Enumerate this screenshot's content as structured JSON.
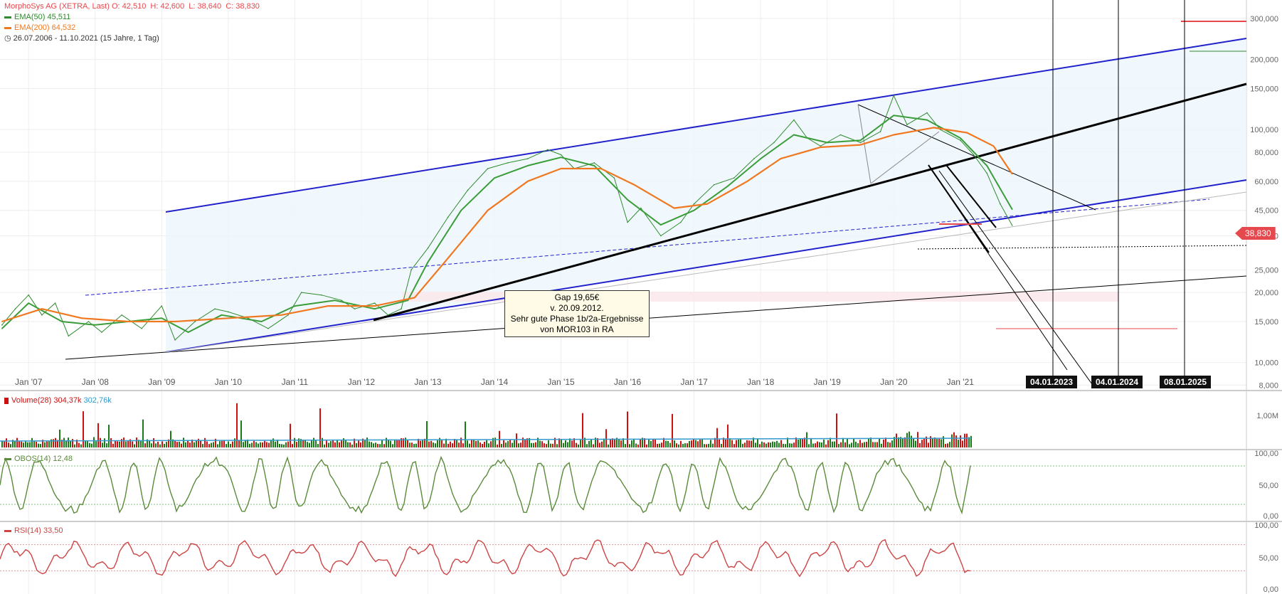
{
  "header": {
    "title": "MorphoSys AG (XETRA, Last)",
    "ohlc": "O: 42,510  H: 42,600  L: 38,640  C: 38,830",
    "ema50_label": "EMA(50)",
    "ema50_value": "45,511",
    "ema200_label": "EMA(200)",
    "ema200_value": "64,532",
    "range": "26.07.2006 - 11.10.2021",
    "range_note": "(15 Jahre, 1 Tag)"
  },
  "colors": {
    "price": "#2e8b2e",
    "ema50": "#3a9d3a",
    "ema200": "#f07820",
    "channel": "#2222cc",
    "volume_up": "#1a7a1a",
    "volume_down": "#cc1111",
    "volume_avg": "#3399cc",
    "obos": "#5a8a3a",
    "rsi": "#cc4444",
    "price_tag": "#e5484d"
  },
  "price_tag": "38,830",
  "annotation": {
    "line1": "Gap 19,65€",
    "line2": "v. 20.09.2012.",
    "line3": "Sehr gute Phase 1b/2a-Ergebnisse",
    "line4": "von MOR103 in RA"
  },
  "date_markers": [
    "04.01.2023",
    "04.01.2024",
    "08.01.2025"
  ],
  "volume_panel": {
    "label": "Volume(28)",
    "value1": "304,37k",
    "value2": "302,76k",
    "tick": "1,00M"
  },
  "obos_panel": {
    "label": "OBOS(14)",
    "value": "12,48",
    "ticks": [
      "100,00",
      "50,00",
      "0,00"
    ]
  },
  "rsi_panel": {
    "label": "RSI(14)",
    "value": "33,50",
    "ticks": [
      "100,00",
      "50,00",
      "0,00"
    ]
  },
  "chart_data": {
    "type": "line",
    "title": "MorphoSys AG (XETRA, Last)",
    "scale": "log",
    "x_ticks": [
      "Jan '07",
      "Jan '08",
      "Jan '09",
      "Jan '10",
      "Jan '11",
      "Jan '12",
      "Jan '13",
      "Jan '14",
      "Jan '15",
      "Jan '16",
      "Jan '17",
      "Jan '18",
      "Jan '19",
      "Jan '20",
      "Jan '21"
    ],
    "y_ticks": [
      "300,000",
      "200,000",
      "150,000",
      "100,000",
      "80,000",
      "60,000",
      "45,000",
      "35,000",
      "25,000",
      "20,000",
      "15,000",
      "10,000",
      "8,000"
    ],
    "y_tick_values": [
      300,
      200,
      150,
      100,
      80,
      60,
      45,
      35,
      25,
      20,
      15,
      10,
      8
    ],
    "ylim": [
      7.8,
      360
    ],
    "x_range": [
      2006.57,
      2025.3
    ],
    "series": [
      {
        "name": "MorphoSys AG",
        "points": [
          [
            2006.6,
            14.5
          ],
          [
            2006.8,
            17.0
          ],
          [
            2007.0,
            19.5
          ],
          [
            2007.2,
            16.0
          ],
          [
            2007.4,
            18.0
          ],
          [
            2007.6,
            13.0
          ],
          [
            2007.9,
            15.0
          ],
          [
            2008.1,
            13.5
          ],
          [
            2008.4,
            16.0
          ],
          [
            2008.7,
            14.0
          ],
          [
            2009.0,
            17.5
          ],
          [
            2009.2,
            12.5
          ],
          [
            2009.5,
            15.0
          ],
          [
            2009.8,
            17.0
          ],
          [
            2010.0,
            16.5
          ],
          [
            2010.3,
            15.5
          ],
          [
            2010.6,
            14.0
          ],
          [
            2010.9,
            16.0
          ],
          [
            2011.1,
            20.0
          ],
          [
            2011.4,
            19.5
          ],
          [
            2011.7,
            18.5
          ],
          [
            2011.9,
            17.0
          ],
          [
            2012.2,
            18.0
          ],
          [
            2012.4,
            16.0
          ],
          [
            2012.6,
            17.0
          ],
          [
            2012.75,
            25.0
          ],
          [
            2013.0,
            31.0
          ],
          [
            2013.3,
            42.0
          ],
          [
            2013.6,
            55.0
          ],
          [
            2013.9,
            68.0
          ],
          [
            2014.2,
            72.0
          ],
          [
            2014.5,
            75.0
          ],
          [
            2014.8,
            82.0
          ],
          [
            2015.0,
            78.0
          ],
          [
            2015.2,
            68.0
          ],
          [
            2015.5,
            72.0
          ],
          [
            2015.8,
            62.0
          ],
          [
            2016.0,
            40.0
          ],
          [
            2016.2,
            46.0
          ],
          [
            2016.5,
            35.0
          ],
          [
            2016.8,
            40.0
          ],
          [
            2017.0,
            48.0
          ],
          [
            2017.3,
            58.0
          ],
          [
            2017.6,
            62.0
          ],
          [
            2017.9,
            75.0
          ],
          [
            2018.2,
            88.0
          ],
          [
            2018.5,
            110.0
          ],
          [
            2018.7,
            92.0
          ],
          [
            2018.9,
            85.0
          ],
          [
            2019.2,
            95.0
          ],
          [
            2019.5,
            88.0
          ],
          [
            2019.8,
            98.0
          ],
          [
            2020.0,
            140.0
          ],
          [
            2020.2,
            105.0
          ],
          [
            2020.5,
            118.0
          ],
          [
            2020.7,
            100.0
          ],
          [
            2021.0,
            90.0
          ],
          [
            2021.2,
            78.0
          ],
          [
            2021.4,
            65.0
          ],
          [
            2021.6,
            48.0
          ],
          [
            2021.78,
            38.8
          ]
        ]
      },
      {
        "name": "EMA(50)",
        "points": [
          [
            2006.6,
            14.0
          ],
          [
            2007.0,
            18.0
          ],
          [
            2007.5,
            15.0
          ],
          [
            2008.0,
            14.5
          ],
          [
            2008.5,
            15.0
          ],
          [
            2009.0,
            15.5
          ],
          [
            2009.4,
            13.5
          ],
          [
            2009.9,
            16.0
          ],
          [
            2010.5,
            15.0
          ],
          [
            2011.0,
            17.5
          ],
          [
            2011.6,
            18.5
          ],
          [
            2012.2,
            17.0
          ],
          [
            2012.7,
            18.5
          ],
          [
            2013.0,
            27.0
          ],
          [
            2013.5,
            45.0
          ],
          [
            2014.0,
            62.0
          ],
          [
            2014.5,
            70.0
          ],
          [
            2015.0,
            76.0
          ],
          [
            2015.5,
            70.0
          ],
          [
            2016.0,
            50.0
          ],
          [
            2016.5,
            39.0
          ],
          [
            2017.0,
            45.0
          ],
          [
            2017.5,
            57.0
          ],
          [
            2018.0,
            75.0
          ],
          [
            2018.5,
            95.0
          ],
          [
            2019.0,
            88.0
          ],
          [
            2019.5,
            90.0
          ],
          [
            2020.0,
            115.0
          ],
          [
            2020.5,
            110.0
          ],
          [
            2021.0,
            92.0
          ],
          [
            2021.4,
            70.0
          ],
          [
            2021.78,
            45.5
          ]
        ]
      },
      {
        "name": "EMA(200)",
        "points": [
          [
            2006.6,
            15.0
          ],
          [
            2007.2,
            17.0
          ],
          [
            2007.8,
            15.5
          ],
          [
            2008.5,
            15.0
          ],
          [
            2009.2,
            15.0
          ],
          [
            2010.0,
            15.5
          ],
          [
            2010.8,
            16.0
          ],
          [
            2011.5,
            17.5
          ],
          [
            2012.2,
            17.5
          ],
          [
            2012.8,
            19.0
          ],
          [
            2013.3,
            28.0
          ],
          [
            2013.9,
            45.0
          ],
          [
            2014.5,
            60.0
          ],
          [
            2015.0,
            68.0
          ],
          [
            2015.6,
            68.0
          ],
          [
            2016.1,
            58.0
          ],
          [
            2016.7,
            46.0
          ],
          [
            2017.2,
            48.0
          ],
          [
            2017.8,
            60.0
          ],
          [
            2018.3,
            75.0
          ],
          [
            2018.9,
            84.0
          ],
          [
            2019.5,
            86.0
          ],
          [
            2020.0,
            95.0
          ],
          [
            2020.6,
            102.0
          ],
          [
            2021.1,
            97.0
          ],
          [
            2021.5,
            85.0
          ],
          [
            2021.78,
            64.5
          ]
        ]
      }
    ],
    "legend": "top-left",
    "grid": true
  }
}
